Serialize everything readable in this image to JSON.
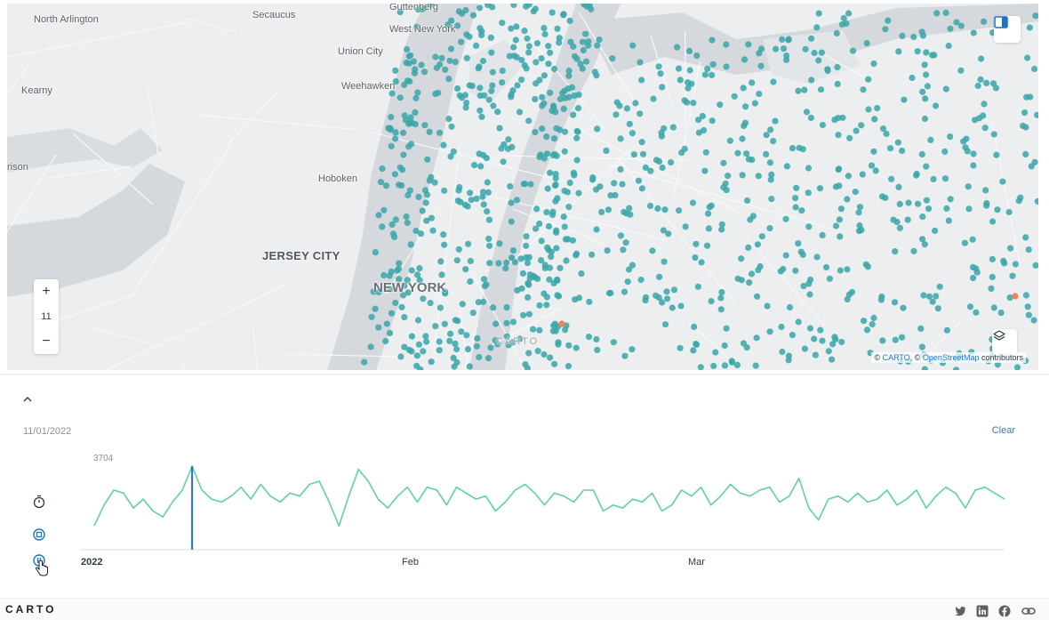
{
  "map": {
    "labels": {
      "north_arlington": "North Arlington",
      "secaucus": "Secaucus",
      "guttenberg": "Guttenberg",
      "west_new_york": "West New York",
      "union_city": "Union City",
      "weehawken": "Weehawken",
      "kearny": "Kearny",
      "harrison": "rison",
      "hoboken": "Hoboken",
      "jersey_city": "JERSEY CITY",
      "new_york": "NEW YORK",
      "carto_watermark": "CARTO"
    },
    "zoom_in": "+",
    "zoom_level": "11",
    "zoom_out": "−",
    "attribution": {
      "prefix": "© ",
      "carto": "CARTO",
      "sep": ", © ",
      "osm": "OpenStreetMap",
      "suffix": " contributors"
    },
    "colors": {
      "land": "#eceef0",
      "water": "#d5d8dc",
      "park": "#e3e6e8",
      "point": "#3aa6a8",
      "point_alt": "#e9865a"
    }
  },
  "timeseries": {
    "date_label": "11/01/2022",
    "clear_label": "Clear",
    "max_label": "3704",
    "accent": "#1f74c4",
    "line_color": "#5fd39c",
    "controls": [
      "timer-icon",
      "stop-icon",
      "pause-icon"
    ]
  },
  "chart_data": {
    "type": "line",
    "title": "",
    "xlabel": "",
    "ylabel": "",
    "x_tick_labels": [
      "2022",
      "Feb",
      "Mar"
    ],
    "y_max_label": "3704",
    "selected_index": 10,
    "series": [
      {
        "values": [
          2700,
          3050,
          3300,
          3250,
          3000,
          3150,
          2950,
          2850,
          3100,
          3300,
          3704,
          3300,
          3150,
          3100,
          3200,
          3350,
          3150,
          3400,
          3200,
          3100,
          3250,
          3200,
          3400,
          3450,
          3100,
          2700,
          3200,
          3650,
          3450,
          3150,
          3000,
          3200,
          3350,
          3100,
          3350,
          3300,
          3050,
          3350,
          3250,
          3150,
          3200,
          2950,
          3100,
          3300,
          3400,
          3250,
          3050,
          3250,
          3200,
          3100,
          3300,
          3300,
          2950,
          3050,
          3000,
          3150,
          3100,
          3250,
          2950,
          3050,
          3300,
          3200,
          3350,
          3050,
          3200,
          3400,
          3250,
          3200,
          3300,
          3350,
          3100,
          3200,
          3500,
          3000,
          2800,
          3150,
          3200,
          3100,
          3250,
          3100,
          3150,
          3300,
          3050,
          3150,
          3300,
          3000,
          3200,
          3350,
          3250,
          3000,
          3300,
          3350,
          3250,
          3150
        ]
      }
    ]
  },
  "footer": {
    "logo": "CARTO",
    "social": [
      "twitter-icon",
      "linkedin-icon",
      "facebook-icon",
      "link-icon"
    ]
  }
}
